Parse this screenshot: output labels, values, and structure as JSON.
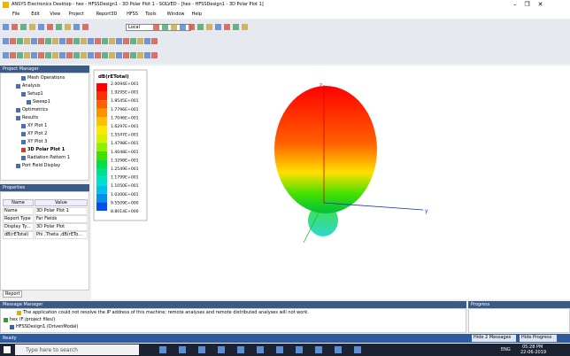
{
  "title_bar": {
    "title": "ANSYS Electronics Desktop - hex - HFSSDesign1 - 3D Polar Plot 1 - SOLVED - [hex - HFSSDesign1 - 3D Polar Plot 1]"
  },
  "menu": [
    "File",
    "Edit",
    "View",
    "Project",
    "Report3D",
    "HFSS",
    "Tools",
    "Window",
    "Help"
  ],
  "toolbar": {
    "solver": "Local"
  },
  "project_manager": {
    "title": "Project Manager",
    "tree": [
      "Mesh Operations",
      "Analysis",
      "Setup1",
      "Sweep1",
      "Optimetrics",
      "Results",
      "XY Plot 1",
      "XY Plot 2",
      "XY Plot 3",
      "3D Polar Plot 1",
      "Radiation Pattern 1",
      "Port Field Display"
    ]
  },
  "properties": {
    "title": "Properties",
    "columns": [
      "Name",
      "Value"
    ],
    "rows": [
      [
        "Name",
        "3D Polar Plot 1"
      ],
      [
        "Report Type",
        "Far Fields"
      ],
      [
        "Display Ty...",
        "3D Polar Plot"
      ],
      [
        "dB(rETotal)",
        "Phi ,Theta ,dB(rETo..."
      ]
    ],
    "tab": "Report"
  },
  "plot": {
    "legend_title": "dB(rETotal)",
    "legend_labels": [
      "2.0094E+001",
      "1.9295E+001",
      "1.8545E+001",
      "1.7796E+001",
      "1.7046E+001",
      "1.6297E+001",
      "1.5547E+001",
      "1.4798E+001",
      "1.4048E+001",
      "1.3298E+001",
      "1.2549E+001",
      "1.1799E+001",
      "1.1050E+001",
      "1.0300E+001",
      "9.5509E+000",
      "8.8014E+000"
    ],
    "axis_z": "z",
    "axis_y": "y"
  },
  "message_manager": {
    "title": "Message Manager",
    "messages": [
      "The application could not resolve the IP address of this machine; remote analyses and remote distributed analyses will not work.",
      "hex (F:/project files/)",
      "HFSSDesign1 (DrivenModal)"
    ]
  },
  "progress": {
    "title": "Progress"
  },
  "status_bar": {
    "text": "Ready",
    "buttons": [
      "Hide 2 Messages",
      "Hide Progress"
    ]
  },
  "taskbar": {
    "search": "Type here to search",
    "language": "ENG",
    "time": "05:28 PM",
    "date": "22-06-2019"
  }
}
